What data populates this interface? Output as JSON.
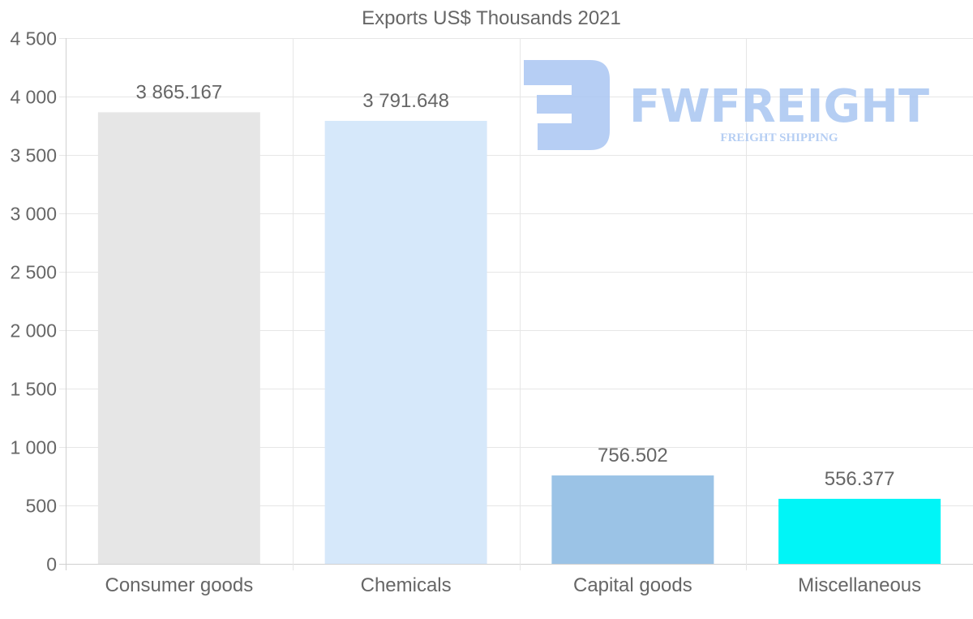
{
  "chart_data": {
    "type": "bar",
    "title": "Exports US$ Thousands 2021",
    "xlabel": "",
    "ylabel": "",
    "categories": [
      "Consumer goods",
      "Chemicals",
      "Capital goods",
      "Miscellaneous"
    ],
    "values": [
      3865.167,
      3791.648,
      756.502,
      556.377
    ],
    "value_labels": [
      "3 865.167",
      "3 791.648",
      "756.502",
      "556.377"
    ],
    "colors": [
      "#e6e6e6",
      "#d6e8fa",
      "#9bc3e6",
      "#00f5f7"
    ],
    "ylim": [
      0,
      4500
    ],
    "yticks": [
      0,
      500,
      1000,
      1500,
      2000,
      2500,
      3000,
      3500,
      4000,
      4500
    ],
    "ytick_labels": [
      "0",
      "500",
      "1 000",
      "1 500",
      "2 000",
      "2 500",
      "3 000",
      "3 500",
      "4 000",
      "4 500"
    ],
    "grid": true,
    "legend": "none"
  },
  "watermark": {
    "name": "FWFREIGHT",
    "tagline": "FREIGHT SHIPPING",
    "color": "#a9c6f2"
  }
}
